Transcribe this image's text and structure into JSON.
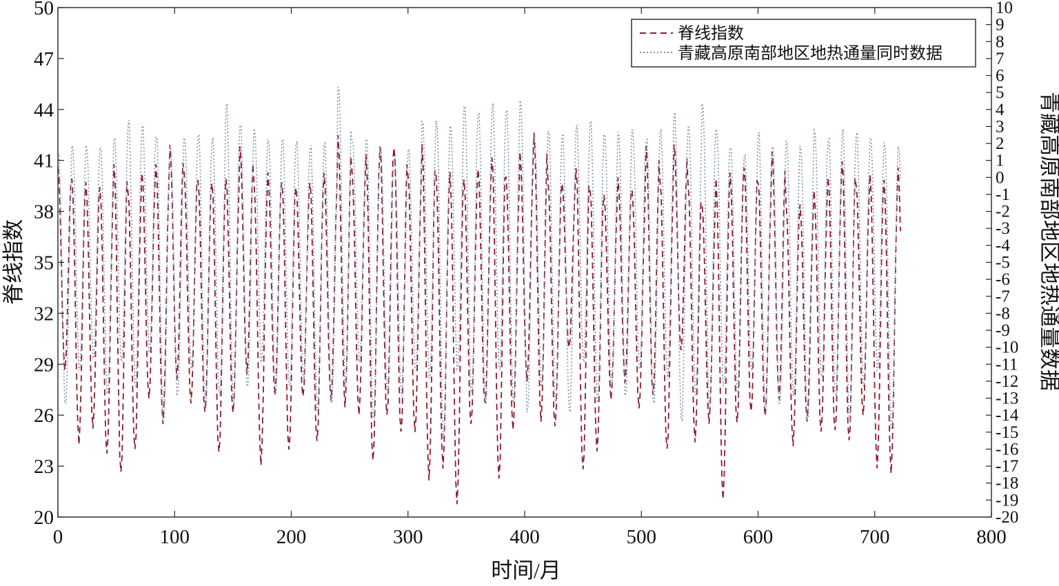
{
  "chart_data": {
    "type": "line",
    "title": "",
    "xlabel": "时间/月",
    "ylabel_left": "脊线指数",
    "ylabel_right": "青藏高原南部地区地热通量数据",
    "xlim": [
      0,
      800
    ],
    "ylim_left": [
      20,
      50
    ],
    "ylim_right": [
      -20,
      10
    ],
    "x_ticks": [
      "0",
      "100",
      "200",
      "300",
      "400",
      "500",
      "600",
      "700",
      "800"
    ],
    "y_ticks_left": [
      "20",
      "23",
      "26",
      "29",
      "32",
      "35",
      "38",
      "41",
      "44",
      "47",
      "50"
    ],
    "y_ticks_right": [
      "-20",
      "-19",
      "-18",
      "-17",
      "-16",
      "-15",
      "-14",
      "-13",
      "-12",
      "-11",
      "-10",
      "-9",
      "-8",
      "-7",
      "-6",
      "-5",
      "-4",
      "-3",
      "-2",
      "-1",
      "0",
      "1",
      "2",
      "3",
      "4",
      "5",
      "6",
      "7",
      "8",
      "9",
      "10"
    ],
    "legend_position": "top-right",
    "grid": false,
    "series": [
      {
        "name": "脊线指数",
        "axis": "left",
        "style": "dashed",
        "color": "#8b1a2b",
        "period_months": 12,
        "x_start": 0,
        "x_end": 722,
        "cycle_peaks": [
          40.6,
          39.8,
          39.6,
          39.4,
          40.9,
          39.3,
          40.3,
          40.7,
          41.8,
          40.4,
          39.9,
          39.8,
          40.0,
          41.8,
          39.7,
          40.2,
          39.7,
          39.5,
          39.8,
          40.3,
          42.4,
          40.3,
          41.3,
          41.9,
          41.9,
          40.2,
          41.9,
          40.1,
          40.2,
          39.9,
          40.6,
          41.3,
          40.0,
          41.4,
          42.5,
          39.8,
          39.7,
          40.7,
          39.4,
          38.9,
          39.9,
          39.2,
          41.9,
          39.9,
          42.0,
          39.6,
          38.4,
          39.8,
          40.3,
          40.7,
          39.8,
          41.5,
          38.4,
          38.3,
          39.2,
          40.1,
          41.1,
          39.6,
          40.1,
          39.7,
          40.5
        ],
        "cycle_troughs": [
          28.7,
          24.4,
          25.3,
          23.7,
          22.5,
          23.9,
          27.0,
          25.6,
          28.2,
          26.7,
          26.1,
          23.7,
          26.1,
          28.5,
          23.2,
          27.2,
          23.9,
          27.0,
          24.4,
          26.9,
          26.6,
          26.1,
          23.3,
          25.9,
          24.9,
          25.0,
          22.3,
          23.0,
          20.8,
          25.4,
          26.6,
          22.2,
          25.2,
          28.1,
          25.7,
          25.3,
          29.9,
          22.7,
          23.9,
          27.0,
          28.0,
          26.4,
          27.1,
          23.9,
          29.8,
          24.5,
          25.6,
          21.1,
          25.5,
          26.1,
          25.9,
          27.0,
          24.3,
          25.7,
          25.0,
          25.0,
          24.4,
          26.0,
          23.0,
          22.7,
          25.3
        ]
      },
      {
        "name": "青藏高原南部地区地热通量同时数据",
        "axis": "right",
        "style": "dotted",
        "color": "#7f8fb0",
        "period_months": 12,
        "x_start": 0,
        "x_end": 722,
        "cycle_peaks": [
          1.6,
          2.0,
          2.0,
          2.0,
          2.5,
          3.5,
          3.2,
          2.6,
          2.0,
          2.5,
          2.8,
          2.5,
          4.5,
          3.3,
          3.0,
          2.4,
          2.5,
          2.3,
          2.0,
          2.2,
          5.5,
          2.3,
          2.5,
          2.0,
          1.5,
          1.8,
          3.5,
          3.5,
          3.2,
          4.5,
          4.0,
          4.5,
          4.2,
          4.7,
          2.5,
          3.0,
          2.8,
          3.2,
          3.5,
          2.7,
          2.8,
          3.0,
          2.5,
          3.0,
          4.0,
          3.2,
          4.5,
          3.0,
          2.0,
          1.5,
          2.8,
          2.0,
          2.3,
          2.0,
          3.0,
          2.5,
          3.0,
          2.8,
          2.5,
          2.2,
          2.0
        ],
        "cycle_troughs": [
          -13.5,
          -11.5,
          -10.8,
          -13.0,
          -11.0,
          -12.5,
          -10.5,
          -14.5,
          -13.0,
          -11.5,
          -13.8,
          -13.0,
          -13.5,
          -12.5,
          -11.0,
          -13.0,
          -12.5,
          -12.0,
          -14.0,
          -13.5,
          -12.5,
          -11.0,
          -14.5,
          -13.0,
          -13.0,
          -11.5,
          -12.0,
          -15.5,
          -11.5,
          -13.0,
          -13.5,
          -11.5,
          -13.5,
          -14.0,
          -12.5,
          -13.5,
          -14.0,
          -11.0,
          -13.5,
          -12.5,
          -13.0,
          -11.5,
          -13.5,
          -12.0,
          -14.5,
          -13.0,
          -14.0,
          -12.5,
          -13.0,
          -11.5,
          -14.0,
          -13.5,
          -13.0,
          -14.5,
          -12.0,
          -13.0,
          -14.5,
          -12.5,
          -11.5,
          -15.0,
          -13.0
        ]
      }
    ]
  }
}
